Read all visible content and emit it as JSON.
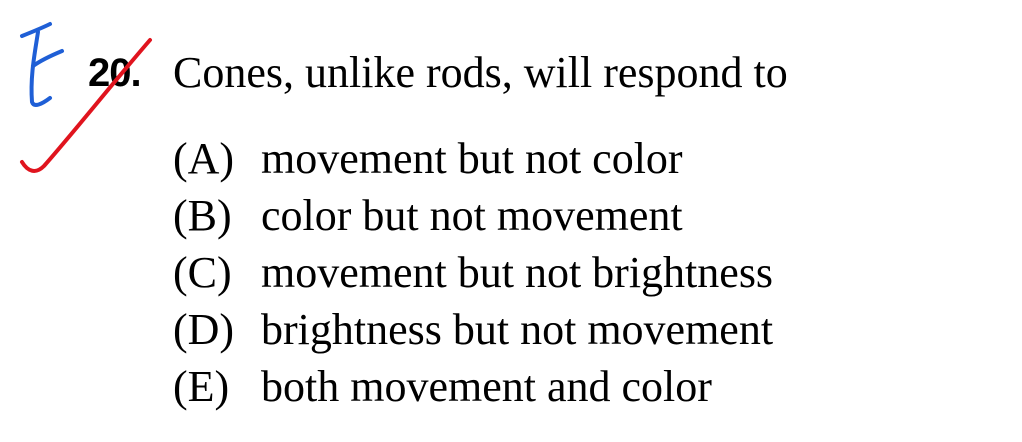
{
  "question": {
    "number": "20.",
    "stem": "Cones, unlike rods, will respond to",
    "choices": [
      {
        "letter": "(A)",
        "text": "movement but not color"
      },
      {
        "letter": "(B)",
        "text": "color but not movement"
      },
      {
        "letter": "(C)",
        "text": "movement but not brightness"
      },
      {
        "letter": "(D)",
        "text": "brightness but not movement"
      },
      {
        "letter": "(E)",
        "text": "both movement and color"
      }
    ]
  },
  "annotations": {
    "handwritten_answer": "E",
    "answer_ink_color": "#1f5fd6",
    "check_mark_color": "#e0141e",
    "check_mark": "red-check-icon"
  }
}
